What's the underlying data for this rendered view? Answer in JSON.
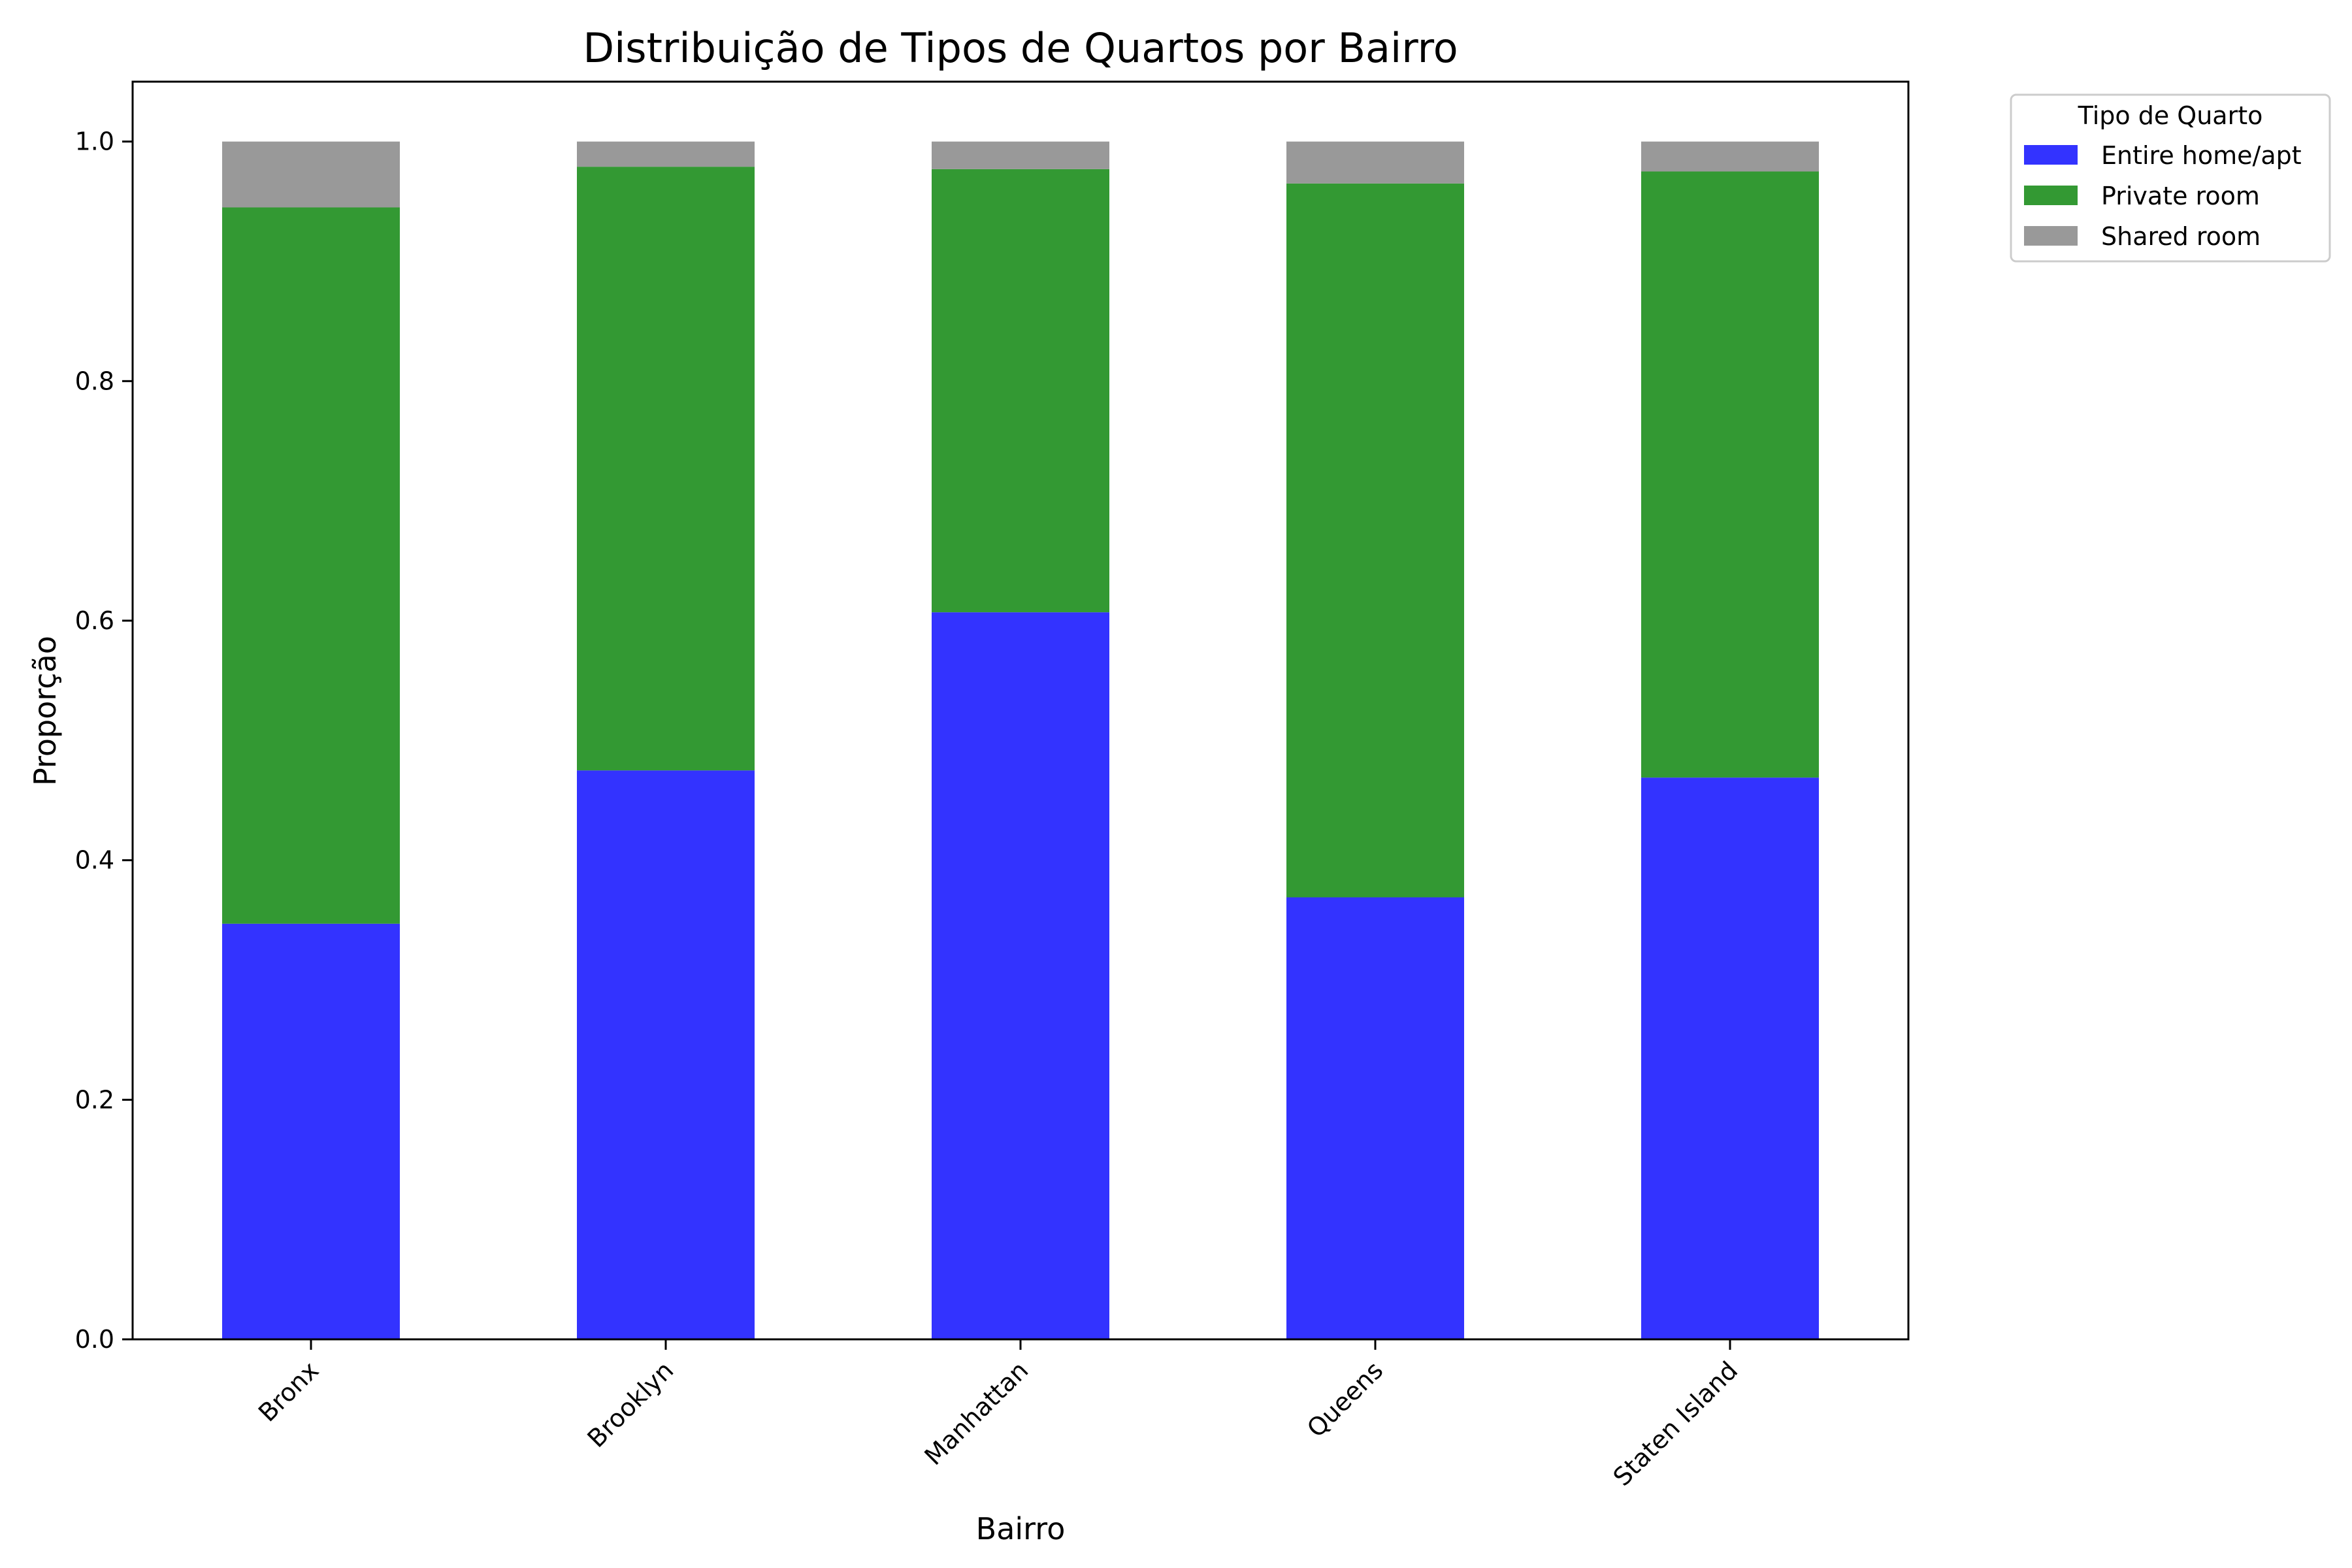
{
  "chart_data": {
    "type": "bar",
    "stacked": true,
    "title": "Distribuição de Tipos de Quartos por Bairro",
    "xlabel": "Bairro",
    "ylabel": "Proporção",
    "ylim": [
      0,
      1.05
    ],
    "yticks": [
      "0.0",
      "0.2",
      "0.4",
      "0.6",
      "0.8",
      "1.0"
    ],
    "categories": [
      "Bronx",
      "Brooklyn",
      "Manhattan",
      "Queens",
      "Staten Island"
    ],
    "series": [
      {
        "name": "Entire home/apt",
        "color": "#3333ff",
        "values": [
          0.347,
          0.475,
          0.607,
          0.369,
          0.469
        ]
      },
      {
        "name": "Private room",
        "color": "#339933",
        "values": [
          0.598,
          0.504,
          0.37,
          0.596,
          0.506
        ]
      },
      {
        "name": "Shared room",
        "color": "#999999",
        "values": [
          0.055,
          0.021,
          0.023,
          0.035,
          0.025
        ]
      }
    ],
    "legend": {
      "title": "Tipo de Quarto",
      "position": "outside-top-right"
    },
    "grid": false
  }
}
